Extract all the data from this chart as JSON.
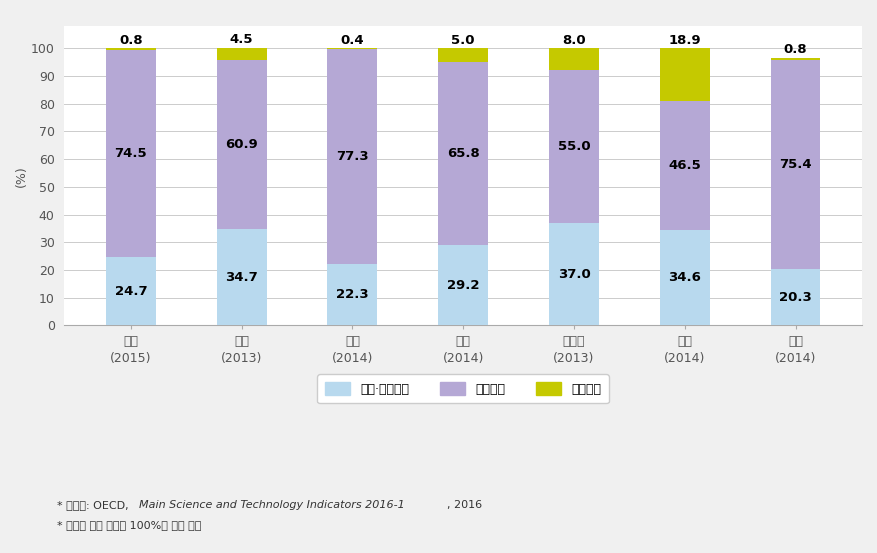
{
  "categories": [
    "한국\n(2015)",
    "미국\n(2013)",
    "일본\n(2014)",
    "독일\n(2014)",
    "프랑스\n(2013)",
    "영국\n(2014)",
    "중국\n(2014)"
  ],
  "gov_values": [
    24.7,
    34.7,
    22.3,
    29.2,
    37.0,
    34.6,
    20.3
  ],
  "private_values": [
    74.5,
    60.9,
    77.3,
    65.8,
    55.0,
    46.5,
    75.4
  ],
  "foreign_values": [
    0.8,
    4.5,
    0.4,
    5.0,
    8.0,
    18.9,
    0.8
  ],
  "gov_color": "#b8d9ee",
  "private_color": "#b5a8d5",
  "foreign_color": "#c5c900",
  "legend_labels": [
    "정부·공공재원",
    "민간재원",
    "외국재원"
  ],
  "ylabel": "(%)",
  "ylim": [
    0,
    108
  ],
  "yticks": [
    0,
    10,
    20,
    30,
    40,
    50,
    60,
    70,
    80,
    90,
    100
  ],
  "footnote1a": "* 자료원: OECD, ",
  "footnote1b": "Main Science and Technology Indicators 2016-1",
  "footnote1c": ", 2016",
  "footnote2": "* 중국의 비중 합계는 100%가 되지 않음",
  "bg_color": "#f5f5f5",
  "plot_bg_color": "#ffffff",
  "bar_width": 0.45,
  "grid_color": "#cccccc",
  "label_fontsize": 9.5,
  "tick_fontsize": 9,
  "legend_fontsize": 9,
  "footnote_fontsize": 8
}
